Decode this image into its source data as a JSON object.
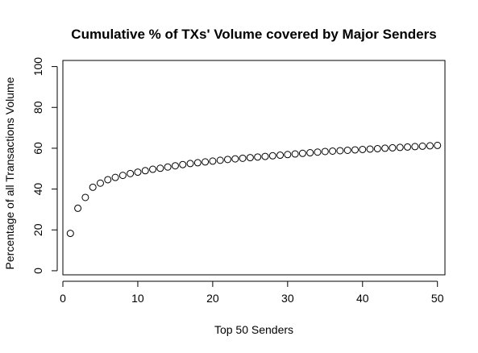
{
  "chart_data": {
    "type": "scatter",
    "title": "Cumulative % of TXs' Volume covered by Major Senders",
    "xlabel": "Top 50 Senders",
    "ylabel": "Percentage of all Transactions Volume",
    "xlim": [
      0,
      51
    ],
    "ylim": [
      -2,
      103
    ],
    "x_ticks": [
      0,
      10,
      20,
      30,
      40,
      50
    ],
    "y_ticks": [
      0,
      20,
      40,
      60,
      80,
      100
    ],
    "x_tick_labels": [
      "0",
      "10",
      "20",
      "30",
      "40",
      "50"
    ],
    "y_tick_labels": [
      "0",
      "20",
      "40",
      "60",
      "80",
      "100"
    ],
    "grid": false,
    "legend": "none",
    "marker": "open-circle",
    "x": [
      1,
      2,
      3,
      4,
      5,
      6,
      7,
      8,
      9,
      10,
      11,
      12,
      13,
      14,
      15,
      16,
      17,
      18,
      19,
      20,
      21,
      22,
      23,
      24,
      25,
      26,
      27,
      28,
      29,
      30,
      31,
      32,
      33,
      34,
      35,
      36,
      37,
      38,
      39,
      40,
      41,
      42,
      43,
      44,
      45,
      46,
      47,
      48,
      49,
      50
    ],
    "y": [
      18.3,
      30.6,
      35.9,
      40.9,
      42.9,
      44.6,
      45.7,
      46.7,
      47.6,
      48.3,
      49.0,
      49.7,
      50.2,
      50.8,
      51.4,
      52.0,
      52.5,
      52.9,
      53.3,
      53.7,
      54.1,
      54.5,
      54.8,
      55.1,
      55.4,
      55.7,
      56.0,
      56.3,
      56.6,
      56.9,
      57.2,
      57.5,
      57.8,
      58.1,
      58.4,
      58.6,
      58.8,
      59.0,
      59.2,
      59.4,
      59.6,
      59.8,
      60.0,
      60.2,
      60.4,
      60.6,
      60.8,
      61.0,
      61.2,
      61.4
    ]
  }
}
